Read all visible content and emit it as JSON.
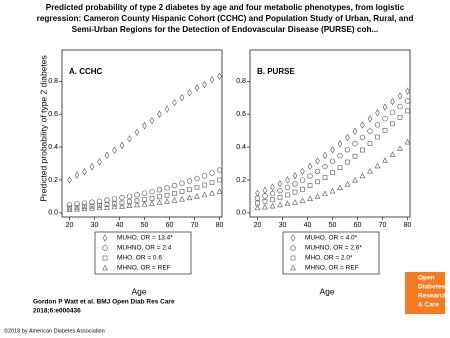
{
  "header": {
    "title_lines": [
      "Predicted probability of type 2 diabetes by age and four metabolic phenotypes, from logistic",
      "regression: Cameron County Hispanic Cohort (CCHC) and Population Study of Urban, Rural, and",
      "Semi-Urban Regions for the Detection of Endovascular Disease (PURSE) coh..."
    ]
  },
  "chart_data": [
    {
      "type": "scatter",
      "panel_title": "A. CCHC",
      "y_label": "Predicted probability of type 2 diabetes",
      "x_label": "Age",
      "x": [
        20,
        23,
        26,
        29,
        32,
        35,
        38,
        41,
        44,
        47,
        50,
        53,
        56,
        59,
        62,
        65,
        68,
        71,
        74,
        77,
        80
      ],
      "xlim": [
        17,
        81
      ],
      "ylim": [
        -0.025,
        0.99
      ],
      "xticks": [
        20,
        30,
        40,
        50,
        60,
        70,
        80
      ],
      "yticks": [
        {
          "value": 0,
          "label": "0.0"
        },
        0.2,
        0.4,
        0.6,
        0.8
      ],
      "color": "#555555",
      "series": [
        {
          "name": "MUHO, OR = 13.4*",
          "marker": "diamond",
          "values": [
            0.2,
            0.23,
            0.25,
            0.28,
            0.31,
            0.35,
            0.38,
            0.41,
            0.45,
            0.49,
            0.53,
            0.56,
            0.6,
            0.63,
            0.67,
            0.7,
            0.73,
            0.76,
            0.78,
            0.81,
            0.83
          ]
        },
        {
          "name": "MUHNO, OR = 2.4",
          "marker": "circle",
          "values": [
            0.05,
            0.055,
            0.06,
            0.065,
            0.071,
            0.078,
            0.085,
            0.093,
            0.101,
            0.11,
            0.12,
            0.13,
            0.141,
            0.153,
            0.166,
            0.18,
            0.194,
            0.209,
            0.225,
            0.242,
            0.26
          ]
        },
        {
          "name": "MHO, OR = 0.6",
          "marker": "square",
          "values": [
            0.03,
            0.033,
            0.037,
            0.041,
            0.045,
            0.05,
            0.055,
            0.06,
            0.067,
            0.073,
            0.081,
            0.089,
            0.098,
            0.107,
            0.118,
            0.129,
            0.141,
            0.155,
            0.169,
            0.184,
            0.2
          ]
        },
        {
          "name": "MHNO, OR = REF",
          "marker": "triangle",
          "values": [
            0.02,
            0.022,
            0.024,
            0.027,
            0.03,
            0.032,
            0.036,
            0.039,
            0.043,
            0.048,
            0.052,
            0.057,
            0.063,
            0.069,
            0.076,
            0.083,
            0.091,
            0.1,
            0.109,
            0.119,
            0.13
          ]
        }
      ]
    },
    {
      "type": "scatter",
      "panel_title": "B. PURSE",
      "x_label": "Age",
      "x": [
        20,
        23,
        26,
        29,
        32,
        35,
        38,
        41,
        44,
        47,
        50,
        53,
        56,
        59,
        62,
        65,
        68,
        71,
        74,
        77,
        80
      ],
      "xlim": [
        17,
        81
      ],
      "ylim": [
        -0.025,
        0.99
      ],
      "xticks": [
        20,
        30,
        40,
        50,
        60,
        70,
        80
      ],
      "yticks": [
        {
          "value": 0,
          "label": "0.0"
        },
        0.2,
        0.4,
        0.6,
        0.8
      ],
      "color": "#555555",
      "series": [
        {
          "name": "MUHO, OR = 4.0*",
          "marker": "diamond",
          "values": [
            0.12,
            0.137,
            0.156,
            0.177,
            0.2,
            0.226,
            0.253,
            0.283,
            0.315,
            0.349,
            0.384,
            0.42,
            0.458,
            0.496,
            0.534,
            0.571,
            0.608,
            0.643,
            0.677,
            0.71,
            0.74
          ]
        },
        {
          "name": "MUHNO, OR = 2.6*",
          "marker": "circle",
          "values": [
            0.09,
            0.103,
            0.118,
            0.135,
            0.155,
            0.176,
            0.199,
            0.224,
            0.252,
            0.282,
            0.314,
            0.348,
            0.384,
            0.421,
            0.459,
            0.497,
            0.535,
            0.573,
            0.61,
            0.646,
            0.68
          ]
        },
        {
          "name": "MHO, OR = 2.0*",
          "marker": "square",
          "values": [
            0.06,
            0.07,
            0.081,
            0.094,
            0.109,
            0.126,
            0.144,
            0.166,
            0.189,
            0.215,
            0.244,
            0.275,
            0.309,
            0.344,
            0.382,
            0.421,
            0.461,
            0.501,
            0.541,
            0.581,
            0.62
          ]
        },
        {
          "name": "MHNO, OR = REF",
          "marker": "triangle",
          "values": [
            0.03,
            0.035,
            0.041,
            0.048,
            0.055,
            0.064,
            0.075,
            0.086,
            0.1,
            0.115,
            0.132,
            0.152,
            0.174,
            0.198,
            0.224,
            0.253,
            0.285,
            0.318,
            0.354,
            0.391,
            0.43
          ]
        }
      ]
    }
  ],
  "footer": {
    "citation": [
      "Gordon P Watt et al. BMJ Open Diab Res Care",
      "2018;6:e000436"
    ],
    "copyright": "©2018 by American Diabetes Association"
  },
  "logo": {
    "lines": [
      "Open",
      "Diabetes",
      "Research",
      "& Care"
    ]
  }
}
